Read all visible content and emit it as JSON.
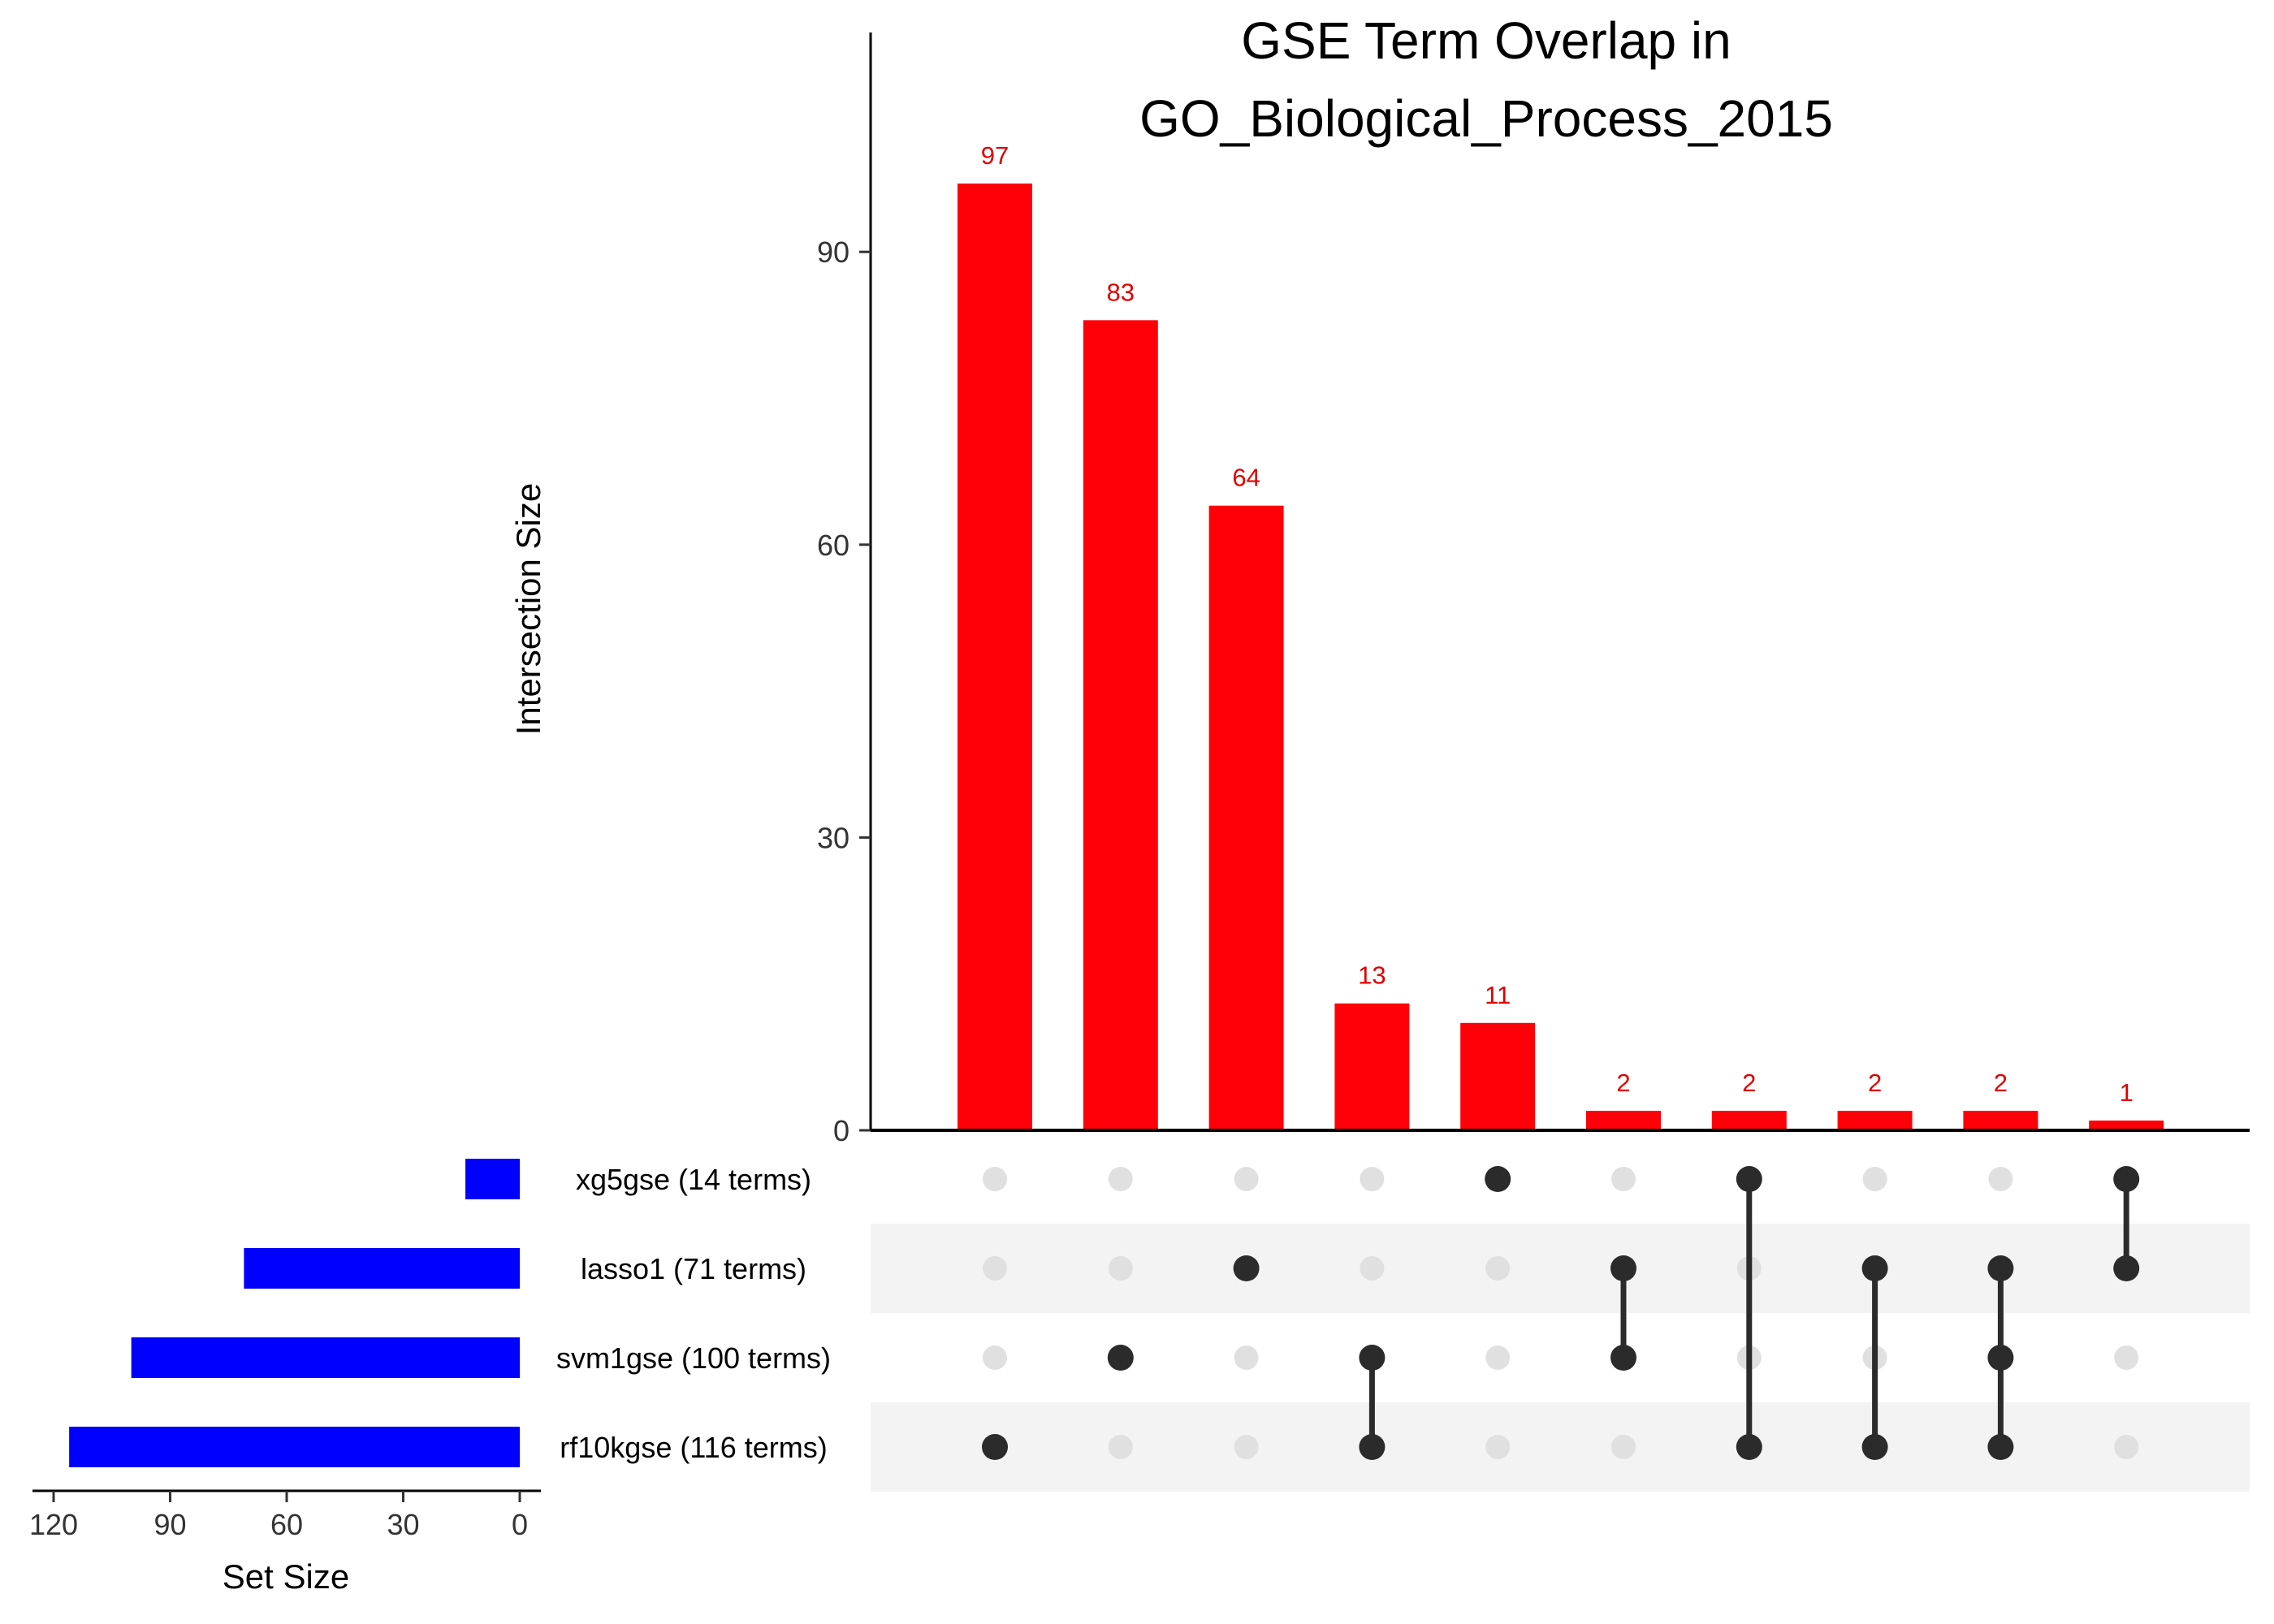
{
  "chart_data": {
    "type": "bar",
    "subtype": "upset",
    "title_line1": "GSE Term Overlap in",
    "title_line2": "GO_Biological_Process_2015",
    "ylabel": "Intersection Size",
    "ylim": [
      0,
      112
    ],
    "yticks": [
      "0",
      "30",
      "60",
      "90"
    ],
    "ytick_values": [
      0,
      30,
      60,
      90
    ],
    "bar_color": "#ff0008",
    "label_color": "#e00000",
    "intersections": [
      {
        "value": 97,
        "label": "97",
        "members": [
          "rf10kgse"
        ]
      },
      {
        "value": 83,
        "label": "83",
        "members": [
          "svm1gse"
        ]
      },
      {
        "value": 64,
        "label": "64",
        "members": [
          "lasso1"
        ]
      },
      {
        "value": 13,
        "label": "13",
        "members": [
          "svm1gse",
          "rf10kgse"
        ]
      },
      {
        "value": 11,
        "label": "11",
        "members": [
          "xg5gse"
        ]
      },
      {
        "value": 2,
        "label": "2",
        "members": [
          "lasso1",
          "svm1gse"
        ]
      },
      {
        "value": 2,
        "label": "2",
        "members": [
          "xg5gse",
          "rf10kgse"
        ]
      },
      {
        "value": 2,
        "label": "2",
        "members": [
          "lasso1",
          "rf10kgse"
        ]
      },
      {
        "value": 2,
        "label": "2",
        "members": [
          "lasso1",
          "svm1gse",
          "rf10kgse"
        ]
      },
      {
        "value": 1,
        "label": "1",
        "members": [
          "xg5gse",
          "lasso1"
        ]
      }
    ],
    "sets": [
      {
        "id": "xg5gse",
        "label": "xg5gse (14 terms)",
        "size": 14
      },
      {
        "id": "lasso1",
        "label": "lasso1 (71 terms)",
        "size": 71
      },
      {
        "id": "svm1gse",
        "label": "svm1gse (100 terms)",
        "size": 100
      },
      {
        "id": "rf10kgse",
        "label": "rf10kgse (116 terms)",
        "size": 116
      }
    ],
    "set_size_xlabel": "Set Size",
    "set_size_ticks": [
      "120",
      "90",
      "60",
      "30",
      "0"
    ],
    "set_size_tick_values": [
      120,
      90,
      60,
      30,
      0
    ],
    "set_size_max": 120,
    "set_bar_color": "#0000ff",
    "dot_active_color": "#2b2b2b",
    "dot_inactive_color": "#e0e0e0",
    "stripe_color": "#f3f3f3",
    "grid": false
  }
}
